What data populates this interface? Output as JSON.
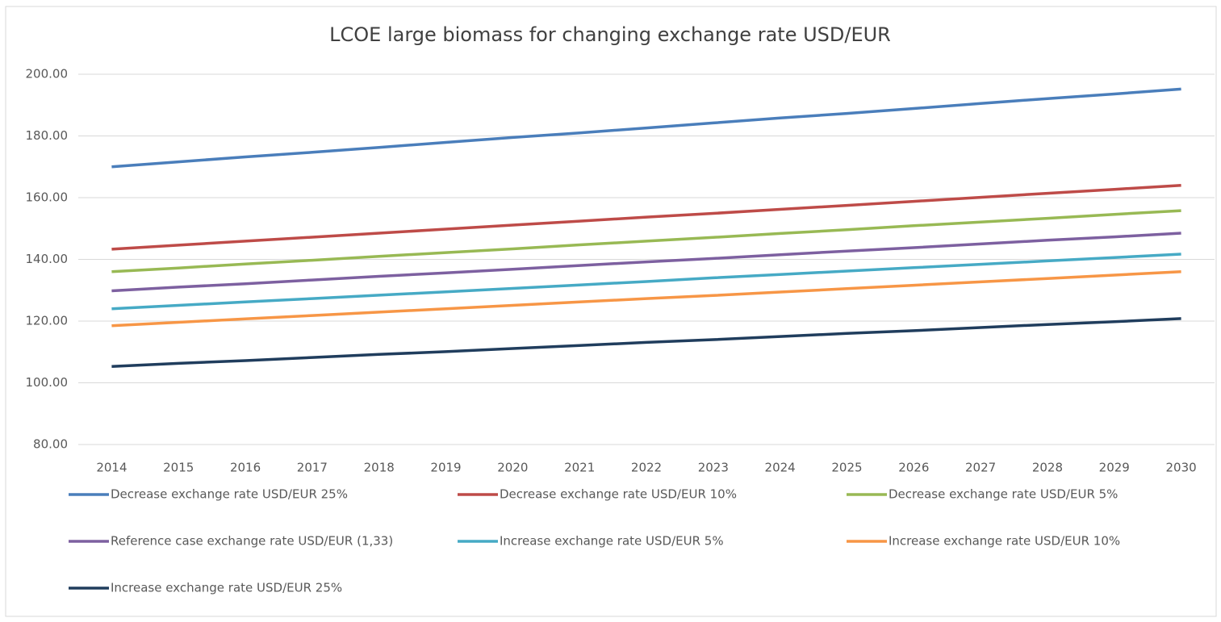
{
  "chart_data": {
    "type": "line",
    "title": "LCOE large biomass for changing exchange rate USD/EUR",
    "categories": [
      "2014",
      "2015",
      "2016",
      "2017",
      "2018",
      "2019",
      "2020",
      "2021",
      "2022",
      "2023",
      "2024",
      "2025",
      "2026",
      "2027",
      "2028",
      "2029",
      "2030"
    ],
    "series": [
      {
        "name": "Decrease exchange rate USD/EUR 25%",
        "color": "#4a7ebb",
        "values": [
          170.0,
          171.6,
          173.2,
          174.7,
          176.3,
          177.9,
          179.5,
          181.0,
          182.6,
          184.2,
          185.8,
          187.3,
          188.9,
          190.5,
          192.1,
          193.6,
          195.2
        ]
      },
      {
        "name": "Decrease exchange rate USD/EUR 10%",
        "color": "#be4b48",
        "values": [
          143.3,
          144.6,
          145.9,
          147.2,
          148.5,
          149.8,
          151.1,
          152.4,
          153.7,
          154.9,
          156.2,
          157.5,
          158.8,
          160.1,
          161.4,
          162.7,
          164.0
        ]
      },
      {
        "name": "Decrease exchange rate USD/EUR 5%",
        "color": "#98b954",
        "values": [
          136.0,
          137.2,
          138.5,
          139.7,
          141.0,
          142.2,
          143.4,
          144.7,
          145.9,
          147.1,
          148.4,
          149.6,
          150.9,
          152.1,
          153.3,
          154.6,
          155.8
        ]
      },
      {
        "name": "Reference case exchange rate USD/EUR (1,33)",
        "color": "#7d60a0",
        "values": [
          129.8,
          131.0,
          132.1,
          133.3,
          134.5,
          135.6,
          136.8,
          138.0,
          139.2,
          140.3,
          141.5,
          142.7,
          143.8,
          145.0,
          146.2,
          147.3,
          148.5
        ]
      },
      {
        "name": "Increase exchange rate USD/EUR 5%",
        "color": "#46aac5",
        "values": [
          124.0,
          125.1,
          126.2,
          127.3,
          128.4,
          129.5,
          130.6,
          131.7,
          132.8,
          134.0,
          135.1,
          136.2,
          137.3,
          138.4,
          139.5,
          140.6,
          141.7
        ]
      },
      {
        "name": "Increase exchange rate USD/EUR 10%",
        "color": "#f79646",
        "values": [
          118.5,
          119.6,
          120.7,
          121.8,
          122.9,
          124.0,
          125.1,
          126.2,
          127.3,
          128.3,
          129.4,
          130.5,
          131.6,
          132.7,
          133.8,
          134.9,
          136.0
        ]
      },
      {
        "name": "Increase exchange rate USD/EUR 25%",
        "color": "#203d5d",
        "values": [
          105.3,
          106.3,
          107.2,
          108.2,
          109.2,
          110.1,
          111.1,
          112.1,
          113.1,
          114.0,
          115.0,
          116.0,
          116.9,
          117.9,
          118.9,
          119.8,
          120.8
        ]
      }
    ],
    "ylim": [
      80,
      200
    ],
    "yticks": [
      {
        "value": 80,
        "label": "80.00"
      },
      {
        "value": 100,
        "label": "100.00"
      },
      {
        "value": 120,
        "label": "120.00"
      },
      {
        "value": 140,
        "label": "140.00"
      },
      {
        "value": 160,
        "label": "160.00"
      },
      {
        "value": 180,
        "label": "180.00"
      },
      {
        "value": 200,
        "label": "200.00"
      }
    ],
    "grid": true
  }
}
